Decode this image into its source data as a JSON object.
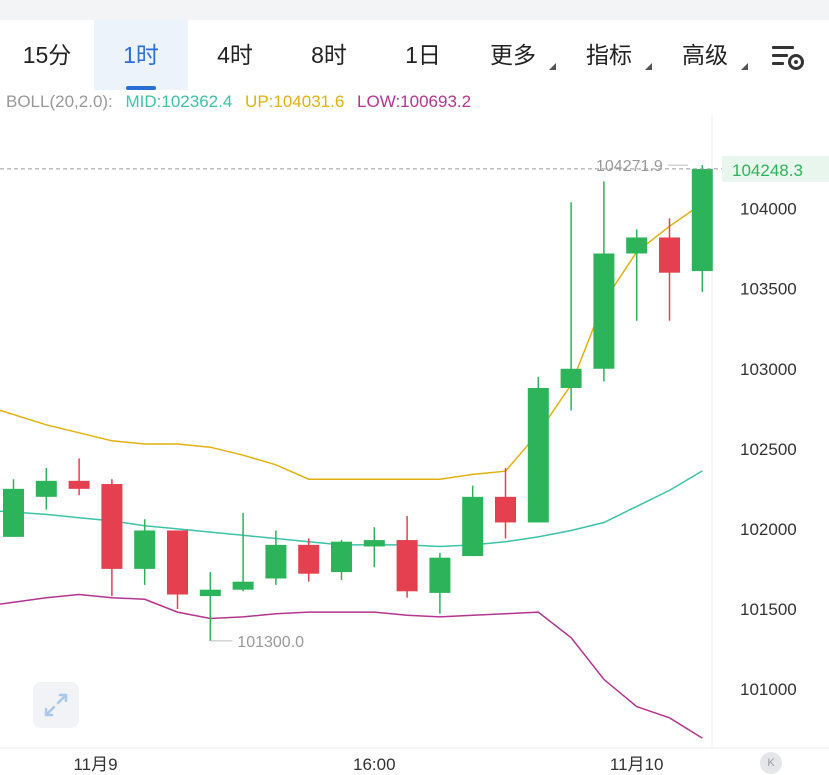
{
  "tabs": [
    {
      "label": "15分",
      "active": false,
      "dropdown": false
    },
    {
      "label": "1时",
      "active": true,
      "dropdown": false
    },
    {
      "label": "4时",
      "active": false,
      "dropdown": false
    },
    {
      "label": "8时",
      "active": false,
      "dropdown": false
    },
    {
      "label": "1日",
      "active": false,
      "dropdown": false
    },
    {
      "label": "更多",
      "active": false,
      "dropdown": true
    },
    {
      "label": "指标",
      "active": false,
      "dropdown": true
    },
    {
      "label": "高级",
      "active": false,
      "dropdown": true
    }
  ],
  "boll": {
    "name": "BOLL(20,2.0):",
    "mid": "MID:102362.4",
    "up": "UP:104031.6",
    "low": "LOW:100693.2"
  },
  "colors": {
    "up": "#2db35a",
    "down": "#e5404f",
    "mid": "#3cc3a8",
    "upper": "#e2b10f",
    "lower": "#b4358f",
    "active_tab": "#2b6fd6",
    "price_tag": "#2db35a"
  },
  "icons": {
    "settings": "settings-icon",
    "expand": "expand-icon",
    "logo": "k-logo-icon"
  },
  "logo_text": "K",
  "chart_data": {
    "type": "candlestick",
    "y_ticks": [
      "104000",
      "103500",
      "103000",
      "102500",
      "102000",
      "101500",
      "101000"
    ],
    "ylim": [
      100650,
      104460
    ],
    "x_ticks": [
      {
        "label": "11月9",
        "index": 2.5
      },
      {
        "label": "16:00",
        "index": 11
      },
      {
        "label": "11月10",
        "index": 19
      }
    ],
    "last_price": "104248.3",
    "high_label": "104271.9",
    "low_label": "101300.0",
    "candles": [
      {
        "o": 101950,
        "h": 102310,
        "l": 101950,
        "c": 102250
      },
      {
        "o": 102200,
        "h": 102380,
        "l": 102120,
        "c": 102300
      },
      {
        "o": 102300,
        "h": 102440,
        "l": 102210,
        "c": 102250
      },
      {
        "o": 102280,
        "h": 102310,
        "l": 101580,
        "c": 101750
      },
      {
        "o": 101750,
        "h": 102060,
        "l": 101650,
        "c": 101990
      },
      {
        "o": 101990,
        "h": 101990,
        "l": 101500,
        "c": 101590
      },
      {
        "o": 101580,
        "h": 101730,
        "l": 101300,
        "c": 101620
      },
      {
        "o": 101620,
        "h": 102100,
        "l": 101610,
        "c": 101670
      },
      {
        "o": 101690,
        "h": 101990,
        "l": 101650,
        "c": 101900
      },
      {
        "o": 101900,
        "h": 101940,
        "l": 101670,
        "c": 101720
      },
      {
        "o": 101730,
        "h": 101930,
        "l": 101680,
        "c": 101920
      },
      {
        "o": 101890,
        "h": 102010,
        "l": 101760,
        "c": 101930
      },
      {
        "o": 101930,
        "h": 102080,
        "l": 101570,
        "c": 101610
      },
      {
        "o": 101600,
        "h": 101850,
        "l": 101470,
        "c": 101820
      },
      {
        "o": 101830,
        "h": 102270,
        "l": 101830,
        "c": 102200
      },
      {
        "o": 102200,
        "h": 102380,
        "l": 101940,
        "c": 102040
      },
      {
        "o": 102040,
        "h": 102950,
        "l": 102040,
        "c": 102880
      },
      {
        "o": 102880,
        "h": 104040,
        "l": 102740,
        "c": 103000
      },
      {
        "o": 103000,
        "h": 104170,
        "l": 102920,
        "c": 103720
      },
      {
        "o": 103720,
        "h": 103870,
        "l": 103300,
        "c": 103820
      },
      {
        "o": 103820,
        "h": 103940,
        "l": 103300,
        "c": 103600
      },
      {
        "o": 103610,
        "h": 104272,
        "l": 103480,
        "c": 104248
      }
    ],
    "series": [
      {
        "name": "UP",
        "values": [
          102740,
          102650,
          102600,
          102550,
          102530,
          102530,
          102510,
          102460,
          102400,
          102310,
          102310,
          102310,
          102310,
          102310,
          102340,
          102360,
          102600,
          102900,
          103420,
          103730,
          103890,
          104032
        ]
      },
      {
        "name": "MID",
        "values": [
          102110,
          102090,
          102070,
          102050,
          102020,
          102000,
          101980,
          101960,
          101940,
          101920,
          101900,
          101900,
          101900,
          101890,
          101900,
          101920,
          101950,
          101990,
          102040,
          102140,
          102240,
          102362
        ]
      },
      {
        "name": "LOW",
        "values": [
          101530,
          101570,
          101590,
          101570,
          101560,
          101480,
          101440,
          101450,
          101470,
          101480,
          101480,
          101480,
          101460,
          101450,
          101460,
          101470,
          101480,
          101320,
          101060,
          100890,
          100820,
          100693
        ]
      }
    ]
  }
}
